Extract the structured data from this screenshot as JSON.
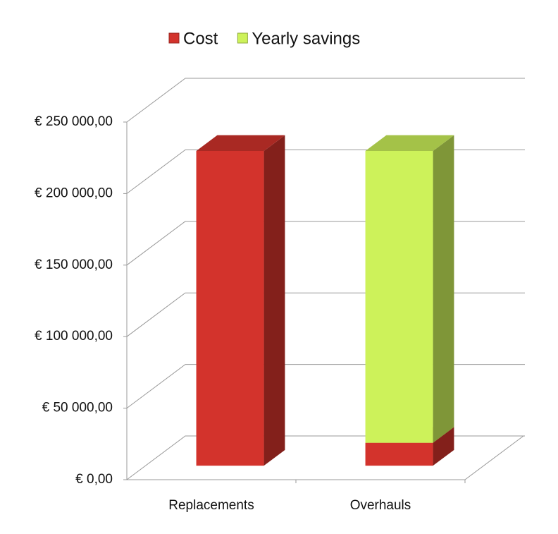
{
  "chart_data": {
    "type": "bar3d_stacked",
    "categories": [
      "Replacements",
      "Overhauls"
    ],
    "series": [
      {
        "name": "Cost",
        "color": "#d3332c",
        "values": [
          220000,
          16000
        ]
      },
      {
        "name": "Yearly savings",
        "color": "#cdf25a",
        "values": [
          0,
          204000
        ]
      }
    ],
    "ylim": [
      0,
      250000
    ],
    "yticks": [
      {
        "value": 0,
        "label": "€  0,00"
      },
      {
        "value": 50000,
        "label": "€ 50 000,00"
      },
      {
        "value": 100000,
        "label": "€ 100 000,00"
      },
      {
        "value": 150000,
        "label": "€ 150 000,00"
      },
      {
        "value": 200000,
        "label": "€ 200 000,00"
      },
      {
        "value": 250000,
        "label": "€ 250 000,00"
      }
    ],
    "grid": true,
    "legend": "top"
  }
}
